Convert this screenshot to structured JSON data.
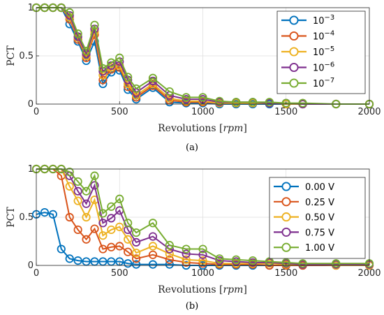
{
  "chart_data": [
    {
      "type": "line",
      "caption": "(a)",
      "xlabel": "Revolutions",
      "xlabel_unit": "rpm",
      "ylabel": "PCT",
      "xlim": [
        0,
        2000
      ],
      "ylim": [
        0,
        1
      ],
      "xticks": [
        0,
        500,
        1000,
        1500,
        2000
      ],
      "yticks": [
        0,
        0.5,
        1
      ],
      "ytick_labels": [
        "0",
        "0.5",
        "1"
      ],
      "grid": true,
      "legend_position": "top-right",
      "x": [
        0,
        50,
        100,
        150,
        200,
        250,
        300,
        350,
        400,
        450,
        500,
        550,
        600,
        700,
        800,
        900,
        1000,
        1100,
        1200,
        1300,
        1400,
        1500,
        1600,
        1800,
        2000
      ],
      "series": [
        {
          "name": "10",
          "sup": "−3",
          "color": "#0072BD",
          "values": [
            1,
            1,
            1,
            1,
            0.83,
            0.65,
            0.45,
            0.65,
            0.21,
            0.33,
            0.35,
            0.15,
            0.05,
            0.17,
            0.02,
            0.01,
            0.01,
            0,
            0,
            0,
            0,
            0,
            0,
            0,
            0
          ]
        },
        {
          "name": "10",
          "sup": "−4",
          "color": "#D95319",
          "values": [
            1,
            1,
            1,
            1,
            0.88,
            0.67,
            0.48,
            0.72,
            0.25,
            0.36,
            0.38,
            0.18,
            0.07,
            0.19,
            0.04,
            0.02,
            0.02,
            0.01,
            0.01,
            0.01,
            0.01,
            0,
            0,
            0,
            0
          ]
        },
        {
          "name": "10",
          "sup": "−5",
          "color": "#EDB120",
          "values": [
            1,
            1,
            1,
            1,
            0.9,
            0.69,
            0.5,
            0.75,
            0.3,
            0.38,
            0.4,
            0.21,
            0.09,
            0.21,
            0.06,
            0.03,
            0.03,
            0.01,
            0.01,
            0.01,
            0.01,
            0,
            0,
            0,
            0
          ]
        },
        {
          "name": "10",
          "sup": "−6",
          "color": "#7E2F8E",
          "values": [
            1,
            1,
            1,
            1,
            0.92,
            0.7,
            0.52,
            0.78,
            0.34,
            0.4,
            0.44,
            0.25,
            0.12,
            0.24,
            0.09,
            0.05,
            0.05,
            0.02,
            0.02,
            0.02,
            0.01,
            0.01,
            0,
            0,
            0
          ]
        },
        {
          "name": "10",
          "sup": "−7",
          "color": "#77AC30",
          "values": [
            1,
            1,
            1,
            1,
            0.95,
            0.73,
            0.55,
            0.82,
            0.37,
            0.43,
            0.48,
            0.28,
            0.16,
            0.27,
            0.13,
            0.07,
            0.07,
            0.03,
            0.02,
            0.02,
            0.02,
            0.01,
            0.01,
            0,
            0
          ]
        }
      ]
    },
    {
      "type": "line",
      "caption": "(b)",
      "xlabel": "Revolutions",
      "xlabel_unit": "rpm",
      "ylabel": "PCT",
      "xlim": [
        0,
        2000
      ],
      "ylim": [
        0,
        1
      ],
      "xticks": [
        0,
        500,
        1000,
        1500,
        2000
      ],
      "yticks": [
        0,
        0.5,
        1
      ],
      "ytick_labels": [
        "0",
        "0.5",
        "1"
      ],
      "grid": true,
      "legend_position": "top-right",
      "x": [
        0,
        50,
        100,
        150,
        200,
        250,
        300,
        350,
        400,
        450,
        500,
        550,
        600,
        700,
        800,
        900,
        1000,
        1100,
        1200,
        1300,
        1400,
        1500,
        1600,
        1800,
        2000
      ],
      "series": [
        {
          "name": "0.00 V",
          "color": "#0072BD",
          "values": [
            0.53,
            0.55,
            0.53,
            0.17,
            0.07,
            0.05,
            0.04,
            0.04,
            0.04,
            0.04,
            0.04,
            0.02,
            0.01,
            0.01,
            0.01,
            0,
            0,
            0,
            0,
            0,
            0,
            0,
            0,
            0,
            0
          ]
        },
        {
          "name": "0.25 V",
          "color": "#D95319",
          "values": [
            1,
            1,
            1,
            0.93,
            0.5,
            0.37,
            0.27,
            0.38,
            0.17,
            0.19,
            0.2,
            0.14,
            0.07,
            0.11,
            0.06,
            0.03,
            0.02,
            0.01,
            0.01,
            0.01,
            0,
            0,
            0,
            0,
            0
          ]
        },
        {
          "name": "0.50 V",
          "color": "#EDB120",
          "values": [
            1,
            1,
            1,
            1,
            0.82,
            0.67,
            0.5,
            0.68,
            0.31,
            0.37,
            0.4,
            0.27,
            0.13,
            0.2,
            0.12,
            0.06,
            0.05,
            0.02,
            0.02,
            0.02,
            0.02,
            0.01,
            0.01,
            0,
            0
          ]
        },
        {
          "name": "0.75 V",
          "color": "#7E2F8E",
          "values": [
            1,
            1,
            1,
            1,
            0.93,
            0.77,
            0.64,
            0.83,
            0.44,
            0.49,
            0.57,
            0.37,
            0.24,
            0.3,
            0.17,
            0.12,
            0.11,
            0.05,
            0.04,
            0.03,
            0.03,
            0.02,
            0.01,
            0.01,
            0.01
          ]
        },
        {
          "name": "1.00 V",
          "color": "#77AC30",
          "values": [
            1,
            1,
            1,
            1,
            0.97,
            0.87,
            0.77,
            0.93,
            0.54,
            0.61,
            0.69,
            0.44,
            0.34,
            0.44,
            0.21,
            0.17,
            0.17,
            0.07,
            0.06,
            0.05,
            0.04,
            0.03,
            0.02,
            0.02,
            0.02
          ]
        }
      ]
    }
  ]
}
